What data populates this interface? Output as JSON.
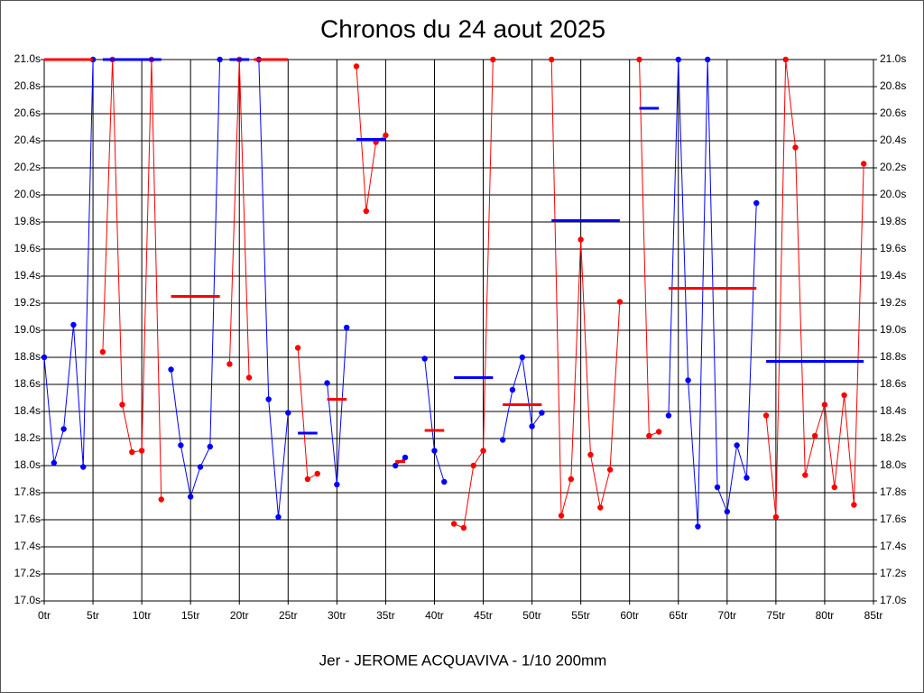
{
  "chart_data": {
    "type": "line",
    "title": "Chronos du 24 aout 2025",
    "x_label": "Jer - JEROME ACQUAVIVA - 1/10 200mm",
    "x": [
      0,
      1,
      2,
      3,
      4,
      5,
      6,
      7,
      8,
      9,
      10,
      11,
      12,
      13,
      14,
      15,
      16,
      17,
      18,
      19,
      20,
      21,
      22,
      23,
      24,
      25,
      26,
      27,
      28,
      29,
      30,
      31,
      32,
      33,
      34,
      35,
      36,
      37,
      38,
      39,
      40,
      41,
      42,
      43,
      44,
      45,
      46,
      47,
      48,
      49,
      50,
      51,
      52,
      53,
      54,
      55,
      56,
      57,
      58,
      59,
      60,
      61,
      62,
      63,
      64,
      65,
      66,
      67,
      68,
      69,
      70,
      71,
      72,
      73,
      74,
      75,
      76,
      77,
      78,
      79,
      80,
      81,
      82,
      83,
      84
    ],
    "series": [
      {
        "color": "#0000ff",
        "values": [
          18.8,
          18.02,
          18.27,
          19.04,
          17.99,
          21.0,
          null,
          null,
          null,
          null,
          null,
          null,
          null,
          18.71,
          18.15,
          17.77,
          17.99,
          18.14,
          21.0,
          null,
          null,
          null,
          21.0,
          18.49,
          17.62,
          18.39,
          null,
          null,
          null,
          18.61,
          17.86,
          19.02,
          null,
          null,
          null,
          null,
          18.0,
          18.06,
          null,
          18.79,
          18.11,
          17.88,
          null,
          null,
          null,
          null,
          null,
          18.19,
          18.56,
          18.8,
          18.29,
          18.39,
          null,
          null,
          null,
          null,
          null,
          null,
          null,
          null,
          null,
          null,
          null,
          null,
          18.37,
          21.0,
          18.63,
          17.55,
          21.0,
          17.84,
          17.66,
          18.15,
          17.91,
          19.94,
          null,
          null,
          null,
          null,
          null,
          null,
          null,
          null,
          null,
          null,
          null
        ]
      },
      {
        "color": "#ff0000",
        "values": [
          null,
          null,
          null,
          null,
          null,
          null,
          18.84,
          21.0,
          18.45,
          18.1,
          18.11,
          21.0,
          17.75,
          null,
          null,
          null,
          null,
          null,
          null,
          18.75,
          21.0,
          18.65,
          null,
          null,
          null,
          null,
          18.87,
          17.9,
          17.94,
          null,
          null,
          null,
          20.95,
          19.88,
          20.39,
          20.44,
          null,
          null,
          null,
          null,
          null,
          null,
          17.57,
          17.54,
          18.0,
          18.11,
          21.0,
          null,
          null,
          null,
          null,
          null,
          21.0,
          17.63,
          17.9,
          19.67,
          18.08,
          17.69,
          17.97,
          19.21,
          null,
          21.0,
          18.22,
          18.25,
          null,
          null,
          null,
          null,
          null,
          null,
          null,
          null,
          null,
          null,
          18.37,
          17.62,
          21.0,
          20.35,
          17.93,
          18.22,
          18.45,
          17.84,
          18.52,
          17.71,
          20.23
        ]
      }
    ],
    "averages": [
      {
        "from": 0,
        "to": 5,
        "value": 21.0,
        "color": "#ff0000"
      },
      {
        "from": 6,
        "to": 12,
        "value": 21.0,
        "color": "#0000ff"
      },
      {
        "from": 13,
        "to": 18,
        "value": 19.25,
        "color": "#ff0000"
      },
      {
        "from": 19,
        "to": 21,
        "value": 21.0,
        "color": "#0000ff"
      },
      {
        "from": 21.5,
        "to": 25,
        "value": 21.0,
        "color": "#ff0000"
      },
      {
        "from": 26,
        "to": 28,
        "value": 18.24,
        "color": "#0000ff"
      },
      {
        "from": 29,
        "to": 31,
        "value": 18.49,
        "color": "#ff0000"
      },
      {
        "from": 32,
        "to": 35,
        "value": 20.41,
        "color": "#0000ff"
      },
      {
        "from": 36,
        "to": 37,
        "value": 18.03,
        "color": "#ff0000"
      },
      {
        "from": 39,
        "to": 41,
        "value": 18.26,
        "color": "#ff0000"
      },
      {
        "from": 42,
        "to": 46,
        "value": 18.65,
        "color": "#0000ff"
      },
      {
        "from": 47,
        "to": 51,
        "value": 18.45,
        "color": "#ff0000"
      },
      {
        "from": 52,
        "to": 59,
        "value": 19.81,
        "color": "#0000ff"
      },
      {
        "from": 61,
        "to": 63,
        "value": 20.64,
        "color": "#0000ff"
      },
      {
        "from": 64,
        "to": 73,
        "value": 19.31,
        "color": "#ff0000"
      },
      {
        "from": 74,
        "to": 84,
        "value": 18.77,
        "color": "#0000ff"
      }
    ],
    "xlim": [
      0,
      85
    ],
    "ylim": [
      17.0,
      21.0
    ],
    "xticks": [
      {
        "value": 0,
        "label": "0tr"
      },
      {
        "value": 5,
        "label": "5tr"
      },
      {
        "value": 10,
        "label": "10tr"
      },
      {
        "value": 15,
        "label": "15tr"
      },
      {
        "value": 20,
        "label": "20tr"
      },
      {
        "value": 25,
        "label": "25tr"
      },
      {
        "value": 30,
        "label": "30tr"
      },
      {
        "value": 35,
        "label": "35tr"
      },
      {
        "value": 40,
        "label": "40tr"
      },
      {
        "value": 45,
        "label": "45tr"
      },
      {
        "value": 50,
        "label": "50tr"
      },
      {
        "value": 55,
        "label": "55tr"
      },
      {
        "value": 60,
        "label": "60tr"
      },
      {
        "value": 65,
        "label": "65tr"
      },
      {
        "value": 70,
        "label": "70tr"
      },
      {
        "value": 75,
        "label": "75tr"
      },
      {
        "value": 80,
        "label": "80tr"
      },
      {
        "value": 85,
        "label": "85tr"
      }
    ],
    "yticks": [
      {
        "value": 17.0,
        "label": "17.0s"
      },
      {
        "value": 17.2,
        "label": "17.2s"
      },
      {
        "value": 17.4,
        "label": "17.4s"
      },
      {
        "value": 17.6,
        "label": "17.6s"
      },
      {
        "value": 17.8,
        "label": "17.8s"
      },
      {
        "value": 18.0,
        "label": "18.0s"
      },
      {
        "value": 18.2,
        "label": "18.2s"
      },
      {
        "value": 18.4,
        "label": "18.4s"
      },
      {
        "value": 18.6,
        "label": "18.6s"
      },
      {
        "value": 18.8,
        "label": "18.8s"
      },
      {
        "value": 19.0,
        "label": "19.0s"
      },
      {
        "value": 19.2,
        "label": "19.2s"
      },
      {
        "value": 19.4,
        "label": "19.4s"
      },
      {
        "value": 19.6,
        "label": "19.6s"
      },
      {
        "value": 19.8,
        "label": "19.8s"
      },
      {
        "value": 20.0,
        "label": "20.0s"
      },
      {
        "value": 20.2,
        "label": "20.2s"
      },
      {
        "value": 20.4,
        "label": "20.4s"
      },
      {
        "value": 20.6,
        "label": "20.6s"
      },
      {
        "value": 20.8,
        "label": "20.8s"
      },
      {
        "value": 21.0,
        "label": "21.0s"
      }
    ],
    "grid": true
  }
}
